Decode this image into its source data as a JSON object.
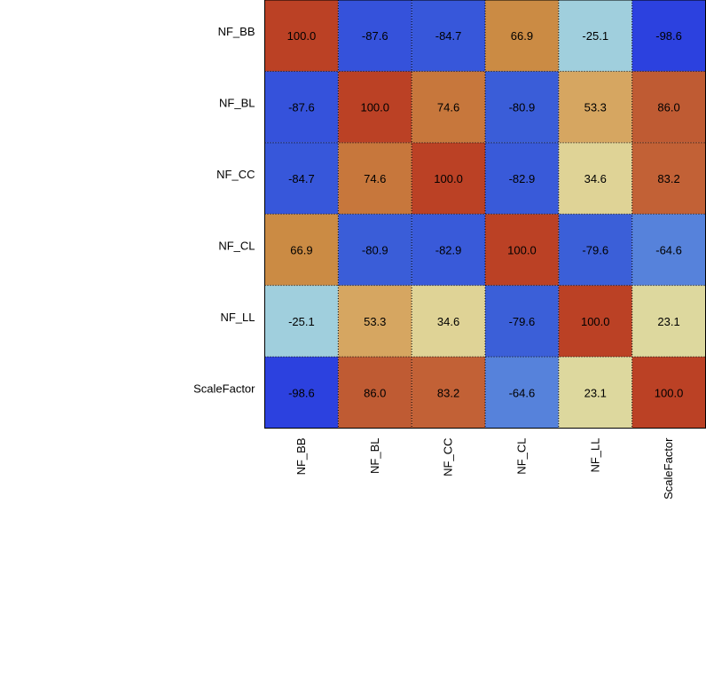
{
  "chart_data": {
    "type": "heatmap",
    "title": "",
    "xlabel": "",
    "ylabel": "",
    "x_categories": [
      "NF_BB",
      "NF_BL",
      "NF_CC",
      "NF_CL",
      "NF_LL",
      "ScaleFactor"
    ],
    "y_categories": [
      "NF_BB",
      "NF_BL",
      "NF_CC",
      "NF_CL",
      "NF_LL",
      "ScaleFactor"
    ],
    "values": [
      [
        100.0,
        -87.6,
        -84.7,
        66.9,
        -25.1,
        -98.6
      ],
      [
        -87.6,
        100.0,
        74.6,
        -80.9,
        53.3,
        86.0
      ],
      [
        -84.7,
        74.6,
        100.0,
        -82.9,
        34.6,
        83.2
      ],
      [
        66.9,
        -80.9,
        -82.9,
        100.0,
        -79.6,
        -64.6
      ],
      [
        -25.1,
        53.3,
        34.6,
        -79.6,
        100.0,
        23.1
      ],
      [
        -98.6,
        86.0,
        83.2,
        -64.6,
        23.1,
        100.0
      ]
    ],
    "value_format": "0.0",
    "value_range": [
      -100,
      100
    ],
    "grid": "dotted",
    "colors": {
      "low": "#2b3fe0",
      "mid": "#a9d8dc",
      "high": "#bb4125",
      "border": "#000000"
    }
  }
}
